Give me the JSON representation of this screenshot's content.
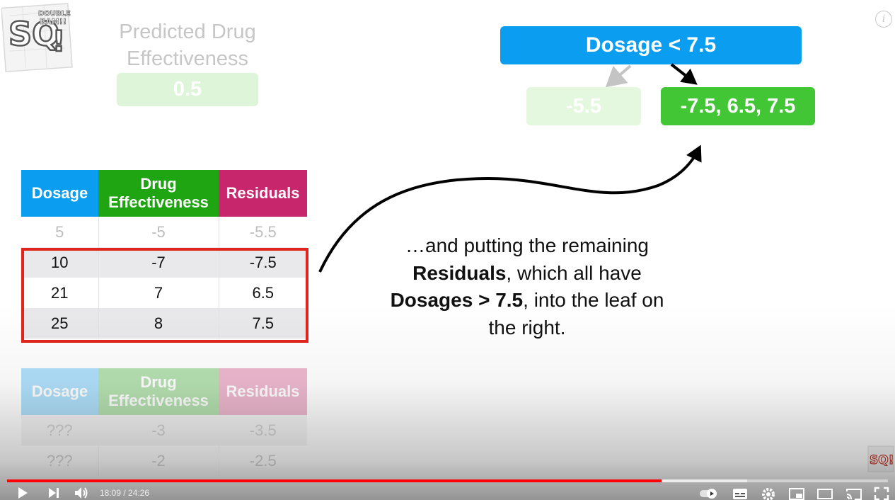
{
  "video": {
    "slide": {
      "logo": {
        "lettering": "SQ! DOUBLE BAM!!"
      },
      "predicted": {
        "title_line1": "Predicted Drug",
        "title_line2": "Effectiveness",
        "value": "0.5"
      },
      "tree": {
        "root": "Dosage < 7.5",
        "leaf_left": "-5.5",
        "leaf_right": "-7.5, 6.5, 7.5"
      },
      "table_main": {
        "headers": [
          "Dosage",
          "Drug Effectiveness",
          "Residuals"
        ],
        "rows": [
          [
            "5",
            "-5",
            "-5.5"
          ],
          [
            "10",
            "-7",
            "-7.5"
          ],
          [
            "21",
            "7",
            "6.5"
          ],
          [
            "25",
            "8",
            "7.5"
          ]
        ]
      },
      "table_ghost": {
        "headers": [
          "Dosage",
          "Drug Effectiveness",
          "Residuals"
        ],
        "rows": [
          [
            "???",
            "-3",
            "-3.5"
          ],
          [
            "???",
            "-2",
            "-2.5"
          ]
        ]
      },
      "caption": {
        "l1": "…and putting the remaining",
        "l2a": "Residuals",
        "l2b": ", which all have",
        "l3a": "Dosages > 7.5",
        "l3b": ", into the leaf on",
        "l4": "the right."
      }
    },
    "player": {
      "current_time": "18:09",
      "duration": "24:26",
      "played_fraction": 0.7432,
      "buffered_fraction": 0.84,
      "progress_color": "#ff0000",
      "icons": [
        "play-icon",
        "next-icon",
        "volume-icon",
        "autoplay-toggle-icon",
        "subtitles-icon",
        "settings-gear-icon",
        "miniplayer-icon",
        "theater-mode-icon",
        "cast-icon",
        "fullscreen-icon",
        "info-icon"
      ]
    }
  }
}
